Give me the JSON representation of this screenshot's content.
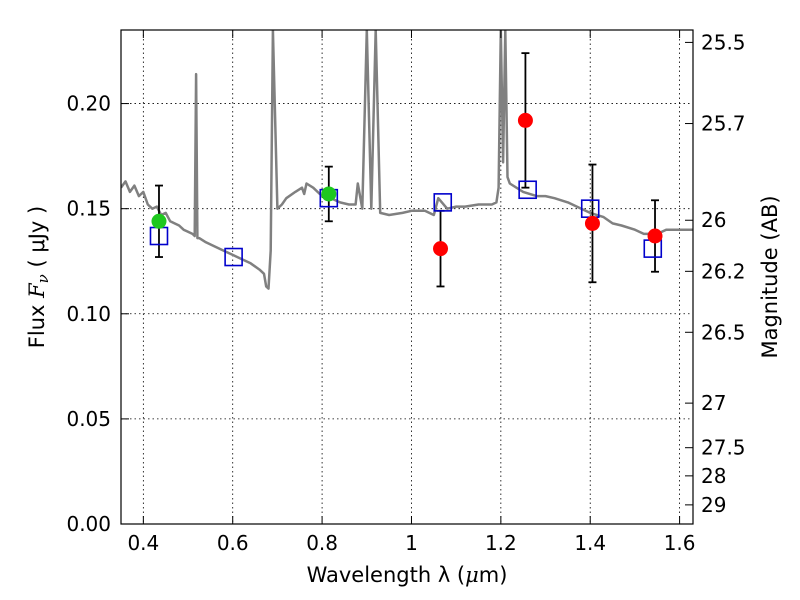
{
  "chart_data": {
    "type": "scatter",
    "xlabel_text": "Wavelength  λ (",
    "xlabel_unit_mu": "μ",
    "xlabel_unit_rest": "m)",
    "ylabel_prefix": "Flux  ",
    "ylabel_symbol": "F",
    "ylabel_sub": "ν",
    "ylabel_unit": "  ( μJy )",
    "y2label": "Magnitude (AB)",
    "xlim": [
      0.35,
      1.63
    ],
    "ylim": [
      0.0,
      0.235
    ],
    "x_ticks": [
      0.4,
      0.6,
      0.8,
      1.0,
      1.2,
      1.4,
      1.6
    ],
    "x_tick_labels": [
      "0.4",
      "0.6",
      "0.8",
      "1",
      "1.2",
      "1.4",
      "1.6"
    ],
    "y_ticks": [
      0.0,
      0.05,
      0.1,
      0.15,
      0.2
    ],
    "y_tick_labels": [
      "0.00",
      "0.05",
      "0.10",
      "0.15",
      "0.20"
    ],
    "y2_ticks": [
      {
        "label": "25.5",
        "flux": 0.2291
      },
      {
        "label": "25.7",
        "flux": 0.1905
      },
      {
        "label": "26",
        "flux": 0.1445
      },
      {
        "label": "26.2",
        "flux": 0.1202
      },
      {
        "label": "26.5",
        "flux": 0.0912
      },
      {
        "label": "27",
        "flux": 0.0575
      },
      {
        "label": "27.5",
        "flux": 0.0363
      },
      {
        "label": "28",
        "flux": 0.0229
      },
      {
        "label": "29",
        "flux": 0.0091
      }
    ],
    "grid": true,
    "colors": {
      "model": "#808080",
      "model_points": "#0000cc",
      "green_points": "#1ec81e",
      "red_points": "#ff0000",
      "errorbar": "#000000"
    },
    "model_spectrum": {
      "x": [
        0.35,
        0.36,
        0.37,
        0.38,
        0.39,
        0.4,
        0.41,
        0.42,
        0.43,
        0.44,
        0.45,
        0.46,
        0.47,
        0.48,
        0.49,
        0.5,
        0.51,
        0.515,
        0.518,
        0.521,
        0.525,
        0.54,
        0.56,
        0.58,
        0.6,
        0.62,
        0.64,
        0.66,
        0.67,
        0.675,
        0.68,
        0.685,
        0.69,
        0.7,
        0.71,
        0.72,
        0.74,
        0.755,
        0.76,
        0.765,
        0.78,
        0.8,
        0.81,
        0.82,
        0.84,
        0.86,
        0.875,
        0.88,
        0.89,
        0.9,
        0.91,
        0.92,
        0.93,
        0.95,
        0.98,
        1.0,
        1.03,
        1.05,
        1.06,
        1.08,
        1.1,
        1.12,
        1.15,
        1.18,
        1.19,
        1.195,
        1.2,
        1.205,
        1.21,
        1.215,
        1.22,
        1.25,
        1.28,
        1.3,
        1.32,
        1.35,
        1.38,
        1.4,
        1.43,
        1.45,
        1.47,
        1.5,
        1.52,
        1.55,
        1.57,
        1.6,
        1.63
      ],
      "y": [
        0.16,
        0.163,
        0.158,
        0.161,
        0.156,
        0.158,
        0.152,
        0.15,
        0.151,
        0.147,
        0.148,
        0.144,
        0.143,
        0.142,
        0.14,
        0.139,
        0.138,
        0.137,
        0.214,
        0.136,
        0.136,
        0.134,
        0.132,
        0.13,
        0.128,
        0.126,
        0.124,
        0.121,
        0.119,
        0.113,
        0.112,
        0.13,
        0.235,
        0.15,
        0.152,
        0.155,
        0.158,
        0.16,
        0.157,
        0.162,
        0.16,
        0.156,
        0.157,
        0.155,
        0.153,
        0.152,
        0.152,
        0.162,
        0.15,
        0.235,
        0.15,
        0.235,
        0.148,
        0.147,
        0.148,
        0.149,
        0.149,
        0.147,
        0.155,
        0.15,
        0.151,
        0.151,
        0.152,
        0.152,
        0.153,
        0.16,
        0.235,
        0.172,
        0.235,
        0.165,
        0.162,
        0.158,
        0.156,
        0.156,
        0.155,
        0.153,
        0.15,
        0.148,
        0.146,
        0.143,
        0.142,
        0.14,
        0.138,
        0.138,
        0.14,
        0.14,
        0.14
      ]
    },
    "model_bandpass_points": [
      {
        "x": 0.435,
        "y": 0.137
      },
      {
        "x": 0.602,
        "y": 0.127
      },
      {
        "x": 0.815,
        "y": 0.155
      },
      {
        "x": 1.07,
        "y": 0.153
      },
      {
        "x": 1.26,
        "y": 0.159
      },
      {
        "x": 1.4,
        "y": 0.15
      },
      {
        "x": 1.54,
        "y": 0.131
      }
    ],
    "observed_green": [
      {
        "x": 0.435,
        "y": 0.144,
        "yerr": 0.017
      },
      {
        "x": 0.815,
        "y": 0.157,
        "yerr": 0.013
      }
    ],
    "observed_red": [
      {
        "x": 1.065,
        "y": 0.131,
        "yerr": 0.018
      },
      {
        "x": 1.255,
        "y": 0.192,
        "yerr": 0.032
      },
      {
        "x": 1.405,
        "y": 0.143,
        "yerr": 0.028
      },
      {
        "x": 1.545,
        "y": 0.137,
        "yerr": 0.017
      }
    ]
  }
}
